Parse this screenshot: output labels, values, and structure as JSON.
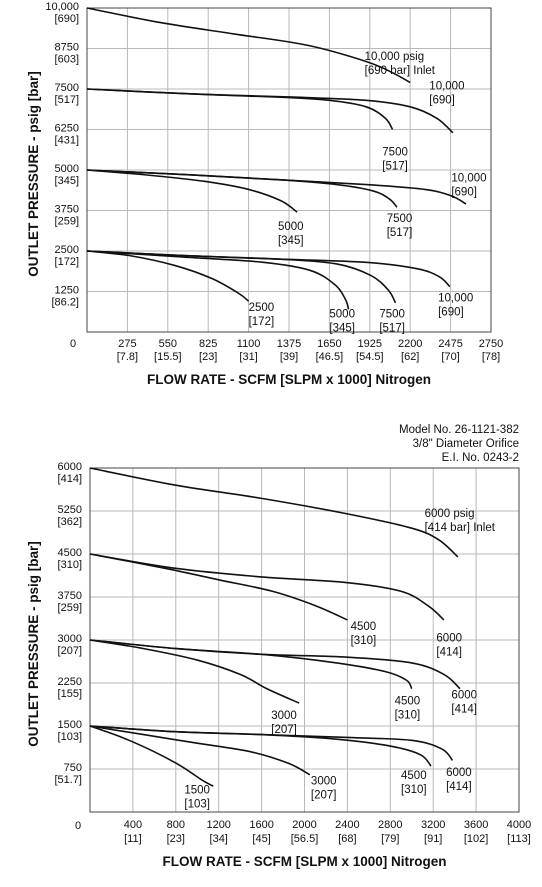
{
  "chart_data": [
    {
      "type": "line",
      "title": "",
      "xlabel": "FLOW RATE - SCFM [SLPM x 1000] Nitrogen",
      "ylabel": "OUTLET PRESSURE - psig [bar]",
      "xlim": [
        0,
        2750
      ],
      "ylim": [
        0,
        10000
      ],
      "grid": true,
      "x_ticks": [
        {
          "v": 0,
          "l1": "0",
          "l2": ""
        },
        {
          "v": 275,
          "l1": "275",
          "l2": "[7.8]"
        },
        {
          "v": 550,
          "l1": "550",
          "l2": "[15.5]"
        },
        {
          "v": 825,
          "l1": "825",
          "l2": "[23]"
        },
        {
          "v": 1100,
          "l1": "1100",
          "l2": "[31]"
        },
        {
          "v": 1375,
          "l1": "1375",
          "l2": "[39]"
        },
        {
          "v": 1650,
          "l1": "1650",
          "l2": "[46.5]"
        },
        {
          "v": 1925,
          "l1": "1925",
          "l2": "[54.5]"
        },
        {
          "v": 2200,
          "l1": "2200",
          "l2": "[62]"
        },
        {
          "v": 2475,
          "l1": "2475",
          "l2": "[70]"
        },
        {
          "v": 2750,
          "l1": "2750",
          "l2": "[78]"
        }
      ],
      "y_ticks": [
        {
          "v": 1250,
          "l1": "1250",
          "l2": "[86.2]"
        },
        {
          "v": 2500,
          "l1": "2500",
          "l2": "[172]"
        },
        {
          "v": 3750,
          "l1": "3750",
          "l2": "[259]"
        },
        {
          "v": 5000,
          "l1": "5000",
          "l2": "[345]"
        },
        {
          "v": 6250,
          "l1": "6250",
          "l2": "[431]"
        },
        {
          "v": 7500,
          "l1": "7500",
          "l2": "[517]"
        },
        {
          "v": 8750,
          "l1": "8750",
          "l2": "[603]"
        },
        {
          "v": 10000,
          "l1": "10,000",
          "l2": "[690]"
        }
      ],
      "series": [
        {
          "points": [
            [
              0,
              10000
            ],
            [
              500,
              9550
            ],
            [
              1000,
              9200
            ],
            [
              1500,
              8850
            ],
            [
              1900,
              8350
            ],
            [
              2080,
              8000
            ],
            [
              2200,
              7700
            ]
          ],
          "label": [
            "10,000 psig",
            "[690 bar] Inlet"
          ],
          "label_at": [
            1890,
            8700
          ]
        },
        {
          "points": [
            [
              0,
              7500
            ],
            [
              700,
              7350
            ],
            [
              1400,
              7250
            ],
            [
              1900,
              7150
            ],
            [
              2200,
              6950
            ],
            [
              2380,
              6600
            ],
            [
              2490,
              6150
            ]
          ],
          "label": [
            "10,000",
            "[690]"
          ],
          "label_at": [
            2330,
            7800
          ]
        },
        {
          "points": [
            [
              0,
              7500
            ],
            [
              700,
              7350
            ],
            [
              1300,
              7250
            ],
            [
              1650,
              7150
            ],
            [
              1900,
              6950
            ],
            [
              2030,
              6600
            ],
            [
              2080,
              6250
            ]
          ],
          "label": [
            "7500",
            "[517]"
          ],
          "label_at": [
            2010,
            5750
          ]
        },
        {
          "points": [
            [
              0,
              5000
            ],
            [
              700,
              4850
            ],
            [
              1300,
              4700
            ],
            [
              1900,
              4550
            ],
            [
              2300,
              4400
            ],
            [
              2480,
              4200
            ],
            [
              2580,
              3950
            ]
          ],
          "label": [
            "10,000",
            "[690]"
          ],
          "label_at": [
            2480,
            4950
          ]
        },
        {
          "points": [
            [
              0,
              5000
            ],
            [
              700,
              4850
            ],
            [
              1300,
              4700
            ],
            [
              1700,
              4550
            ],
            [
              1950,
              4350
            ],
            [
              2060,
              4100
            ],
            [
              2110,
              3850
            ]
          ],
          "label": [
            "7500",
            "[517]"
          ],
          "label_at": [
            2040,
            3700
          ]
        },
        {
          "points": [
            [
              0,
              5000
            ],
            [
              400,
              4850
            ],
            [
              800,
              4650
            ],
            [
              1100,
              4400
            ],
            [
              1320,
              4050
            ],
            [
              1430,
              3700
            ]
          ],
          "label": [
            "5000",
            "[345]"
          ],
          "label_at": [
            1300,
            3450
          ]
        },
        {
          "points": [
            [
              0,
              2500
            ],
            [
              700,
              2350
            ],
            [
              1300,
              2250
            ],
            [
              1900,
              2150
            ],
            [
              2250,
              1950
            ],
            [
              2400,
              1700
            ],
            [
              2470,
              1400
            ]
          ],
          "label": [
            "10,000",
            "[690]"
          ],
          "label_at": [
            2390,
            1250
          ]
        },
        {
          "points": [
            [
              0,
              2500
            ],
            [
              700,
              2350
            ],
            [
              1300,
              2250
            ],
            [
              1700,
              2100
            ],
            [
              1930,
              1750
            ],
            [
              2050,
              1300
            ],
            [
              2100,
              900
            ]
          ],
          "label": [
            "7500",
            "[517]"
          ],
          "label_at": [
            1990,
            750
          ]
        },
        {
          "points": [
            [
              0,
              2500
            ],
            [
              700,
              2300
            ],
            [
              1200,
              2150
            ],
            [
              1520,
              1900
            ],
            [
              1690,
              1450
            ],
            [
              1760,
              1000
            ],
            [
              1780,
              700
            ]
          ],
          "label": [
            "5000",
            "[345]"
          ],
          "label_at": [
            1650,
            750
          ]
        },
        {
          "points": [
            [
              0,
              2500
            ],
            [
              300,
              2350
            ],
            [
              600,
              2050
            ],
            [
              850,
              1650
            ],
            [
              1030,
              1200
            ],
            [
              1100,
              950
            ]
          ],
          "label": [
            "2500",
            "[172]"
          ],
          "label_at": [
            1100,
            950
          ]
        }
      ]
    },
    {
      "type": "line",
      "title": "",
      "xlabel": "FLOW RATE - SCFM [SLPM x 1000] Nitrogen",
      "ylabel": "OUTLET PRESSURE - psig [bar]",
      "xlim": [
        0,
        4000
      ],
      "ylim": [
        0,
        6000
      ],
      "grid": true,
      "model_info": [
        "Model No. 26-1121-382",
        "3/8\" Diameter Orifice",
        "E.I. No. 0243-2"
      ],
      "x_ticks": [
        {
          "v": 0,
          "l1": "0",
          "l2": ""
        },
        {
          "v": 400,
          "l1": "400",
          "l2": "[11]"
        },
        {
          "v": 800,
          "l1": "800",
          "l2": "[23]"
        },
        {
          "v": 1200,
          "l1": "1200",
          "l2": "[34]"
        },
        {
          "v": 1600,
          "l1": "1600",
          "l2": "[45]"
        },
        {
          "v": 2000,
          "l1": "2000",
          "l2": "[56.5]"
        },
        {
          "v": 2400,
          "l1": "2400",
          "l2": "[68]"
        },
        {
          "v": 2800,
          "l1": "2800",
          "l2": "[79]"
        },
        {
          "v": 3200,
          "l1": "3200",
          "l2": "[91]"
        },
        {
          "v": 3600,
          "l1": "3600",
          "l2": "[102]"
        },
        {
          "v": 4000,
          "l1": "4000",
          "l2": "[113]"
        }
      ],
      "y_ticks": [
        {
          "v": 750,
          "l1": "750",
          "l2": "[51.7]"
        },
        {
          "v": 1500,
          "l1": "1500",
          "l2": "[103]"
        },
        {
          "v": 2250,
          "l1": "2250",
          "l2": "[155]"
        },
        {
          "v": 3000,
          "l1": "3000",
          "l2": "[207]"
        },
        {
          "v": 3750,
          "l1": "3750",
          "l2": "[259]"
        },
        {
          "v": 4500,
          "l1": "4500",
          "l2": "[310]"
        },
        {
          "v": 5250,
          "l1": "5250",
          "l2": "[362]"
        },
        {
          "v": 6000,
          "l1": "6000",
          "l2": "[414]"
        }
      ],
      "series": [
        {
          "points": [
            [
              0,
              6000
            ],
            [
              800,
              5700
            ],
            [
              1600,
              5470
            ],
            [
              2400,
              5200
            ],
            [
              3000,
              4950
            ],
            [
              3250,
              4750
            ],
            [
              3430,
              4450
            ]
          ],
          "label": [
            "6000 psig",
            "[414 bar] Inlet"
          ],
          "label_at": [
            3120,
            5320
          ]
        },
        {
          "points": [
            [
              0,
              4500
            ],
            [
              800,
              4250
            ],
            [
              1600,
              4100
            ],
            [
              2400,
              4000
            ],
            [
              2900,
              3850
            ],
            [
              3150,
              3600
            ],
            [
              3300,
              3350
            ]
          ],
          "label": [
            "6000",
            "[414]"
          ],
          "label_at": [
            3230,
            3150
          ]
        },
        {
          "points": [
            [
              0,
              4500
            ],
            [
              700,
              4250
            ],
            [
              1200,
              4050
            ],
            [
              1700,
              3850
            ],
            [
              2100,
              3600
            ],
            [
              2400,
              3350
            ]
          ],
          "label": [
            "4500",
            "[310]"
          ],
          "label_at": [
            2430,
            3350
          ]
        },
        {
          "points": [
            [
              0,
              3000
            ],
            [
              800,
              2850
            ],
            [
              1600,
              2750
            ],
            [
              2400,
              2700
            ],
            [
              3000,
              2600
            ],
            [
              3300,
              2400
            ],
            [
              3450,
              2150
            ]
          ],
          "label": [
            "6000",
            "[414]"
          ],
          "label_at": [
            3370,
            2150
          ]
        },
        {
          "points": [
            [
              0,
              3000
            ],
            [
              800,
              2850
            ],
            [
              1600,
              2750
            ],
            [
              2300,
              2600
            ],
            [
              2750,
              2450
            ],
            [
              2950,
              2300
            ],
            [
              3000,
              2150
            ]
          ],
          "label": [
            "4500",
            "[310]"
          ],
          "label_at": [
            2840,
            2050
          ]
        },
        {
          "points": [
            [
              0,
              3000
            ],
            [
              500,
              2850
            ],
            [
              1000,
              2650
            ],
            [
              1400,
              2400
            ],
            [
              1650,
              2150
            ],
            [
              1950,
              1900
            ]
          ],
          "label": [
            "3000",
            "[207]"
          ],
          "label_at": [
            1690,
            1800
          ]
        },
        {
          "points": [
            [
              0,
              1500
            ],
            [
              800,
              1400
            ],
            [
              1600,
              1350
            ],
            [
              2400,
              1300
            ],
            [
              3000,
              1250
            ],
            [
              3280,
              1100
            ],
            [
              3380,
              900
            ]
          ],
          "label": [
            "6000",
            "[414]"
          ],
          "label_at": [
            3320,
            800
          ]
        },
        {
          "points": [
            [
              0,
              1500
            ],
            [
              800,
              1400
            ],
            [
              1600,
              1350
            ],
            [
              2300,
              1270
            ],
            [
              2800,
              1150
            ],
            [
              3080,
              1000
            ],
            [
              3180,
              800
            ]
          ],
          "label": [
            "4500",
            "[310]"
          ],
          "label_at": [
            2900,
            750
          ]
        },
        {
          "points": [
            [
              0,
              1500
            ],
            [
              500,
              1350
            ],
            [
              1000,
              1200
            ],
            [
              1500,
              1050
            ],
            [
              1850,
              850
            ],
            [
              2050,
              650
            ]
          ],
          "label": [
            "3000",
            "[207]"
          ],
          "label_at": [
            2060,
            650
          ]
        },
        {
          "points": [
            [
              0,
              1500
            ],
            [
              300,
              1300
            ],
            [
              600,
              1050
            ],
            [
              850,
              800
            ],
            [
              1050,
              550
            ],
            [
              1150,
              450
            ]
          ],
          "label": [
            "1500",
            "[103]"
          ],
          "label_at": [
            880,
            500
          ]
        }
      ]
    }
  ]
}
